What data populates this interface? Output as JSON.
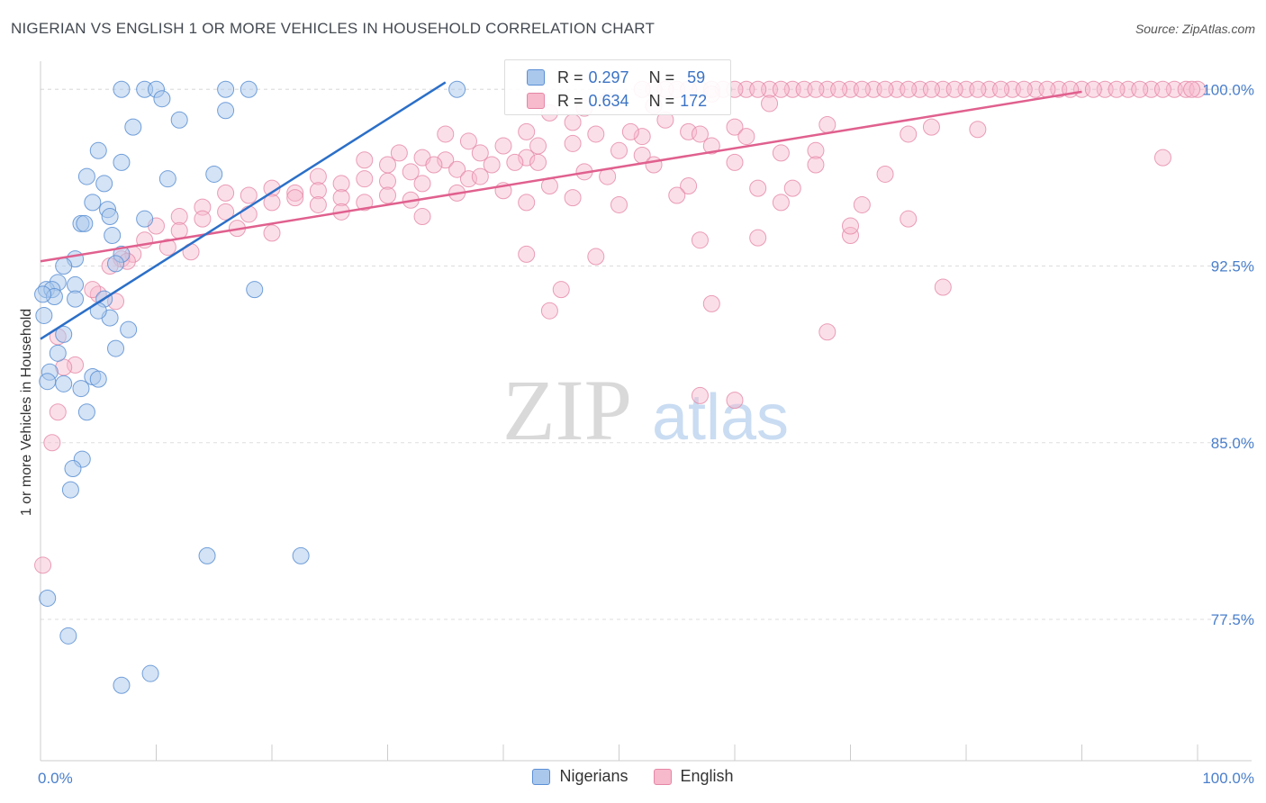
{
  "chart_data": {
    "type": "scatter",
    "title": "NIGERIAN VS ENGLISH 1 OR MORE VEHICLES IN HOUSEHOLD CORRELATION CHART",
    "source": "Source: ZipAtlas.com",
    "xlabel": "",
    "ylabel": "1 or more Vehicles in Household",
    "xlim": [
      0,
      100
    ],
    "ylim": [
      71.5,
      101.5
    ],
    "x_tick_labels": [
      "0.0%",
      "100.0%"
    ],
    "y_ticks": [
      77.5,
      85.0,
      92.5,
      100.0
    ],
    "y_tick_labels": [
      "77.5%",
      "85.0%",
      "92.5%",
      "100.0%"
    ],
    "watermark": {
      "zip": "ZIP",
      "atlas": "atlas"
    },
    "legend": {
      "r_label": "R = ",
      "n_label": "N = ",
      "entries": [
        {
          "name": "Nigerians",
          "r": "0.297",
          "n": "59"
        },
        {
          "name": "English",
          "r": "0.634",
          "n": "172"
        }
      ]
    },
    "colors": {
      "nigerians_fill": "#aac8ec",
      "nigerians_stroke": "#5b8fd4",
      "nigerians_line": "#2b6fc8",
      "english_fill": "#f7b9cc",
      "english_stroke": "#e587a6",
      "english_line": "#e0608e",
      "tick_label": "#4a7fcb",
      "grid": "#dddddd"
    },
    "series": [
      {
        "name": "Nigerians",
        "trendline": {
          "x": [
            0,
            35
          ],
          "y": [
            89.4,
            100.3
          ]
        },
        "points": [
          [
            7,
            100
          ],
          [
            9,
            100
          ],
          [
            10,
            100
          ],
          [
            16,
            100
          ],
          [
            18,
            100
          ],
          [
            36,
            100
          ],
          [
            10.5,
            99.6
          ],
          [
            16,
            99.1
          ],
          [
            12,
            98.7
          ],
          [
            8,
            98.4
          ],
          [
            5,
            97.4
          ],
          [
            7,
            96.9
          ],
          [
            4,
            96.3
          ],
          [
            11,
            96.2
          ],
          [
            15,
            96.4
          ],
          [
            5.5,
            96
          ],
          [
            4.5,
            95.2
          ],
          [
            5.8,
            94.9
          ],
          [
            6,
            94.6
          ],
          [
            9,
            94.5
          ],
          [
            3.5,
            94.3
          ],
          [
            3.8,
            94.3
          ],
          [
            6.2,
            93.8
          ],
          [
            3,
            92.8
          ],
          [
            7,
            93
          ],
          [
            2,
            92.5
          ],
          [
            6.5,
            92.6
          ],
          [
            1.5,
            91.8
          ],
          [
            0.5,
            91.5
          ],
          [
            1,
            91.5
          ],
          [
            3,
            91.7
          ],
          [
            1.2,
            91.2
          ],
          [
            3,
            91.1
          ],
          [
            18.5,
            91.5
          ],
          [
            5.5,
            91.1
          ],
          [
            6,
            90.3
          ],
          [
            5,
            90.6
          ],
          [
            0.3,
            90.4
          ],
          [
            2,
            89.6
          ],
          [
            7.6,
            89.8
          ],
          [
            1.5,
            88.8
          ],
          [
            6.5,
            89
          ],
          [
            0.8,
            88
          ],
          [
            4.5,
            87.8
          ],
          [
            0.6,
            87.6
          ],
          [
            5,
            87.7
          ],
          [
            2,
            87.5
          ],
          [
            3.5,
            87.3
          ],
          [
            4,
            86.3
          ],
          [
            3.6,
            84.3
          ],
          [
            2.8,
            83.9
          ],
          [
            2.6,
            83
          ],
          [
            14.4,
            80.2
          ],
          [
            22.5,
            80.2
          ],
          [
            0.6,
            78.4
          ],
          [
            2.4,
            76.8
          ],
          [
            7,
            74.7
          ],
          [
            9.5,
            75.2
          ],
          [
            0.2,
            91.3
          ]
        ]
      },
      {
        "name": "English",
        "trendline": {
          "x": [
            0,
            90
          ],
          "y": [
            92.7,
            99.9
          ]
        },
        "points": [
          [
            53,
            100
          ],
          [
            55,
            100
          ],
          [
            57,
            100
          ],
          [
            59,
            100
          ],
          [
            61,
            100
          ],
          [
            63,
            100
          ],
          [
            65,
            100
          ],
          [
            68,
            100
          ],
          [
            70,
            100
          ],
          [
            72,
            100
          ],
          [
            74,
            100
          ],
          [
            76,
            100
          ],
          [
            78,
            100
          ],
          [
            80,
            100
          ],
          [
            82,
            100
          ],
          [
            84,
            100
          ],
          [
            86,
            100
          ],
          [
            88,
            100
          ],
          [
            90,
            100
          ],
          [
            92,
            100
          ],
          [
            94,
            100
          ],
          [
            96,
            100
          ],
          [
            98,
            100
          ],
          [
            99,
            100
          ],
          [
            100,
            100
          ],
          [
            52,
            100
          ],
          [
            54,
            100
          ],
          [
            56,
            100
          ],
          [
            58,
            100
          ],
          [
            60,
            100
          ],
          [
            62,
            100
          ],
          [
            64,
            100
          ],
          [
            66,
            100
          ],
          [
            67,
            100
          ],
          [
            69,
            100
          ],
          [
            71,
            100
          ],
          [
            73,
            100
          ],
          [
            75,
            100
          ],
          [
            77,
            100
          ],
          [
            79,
            100
          ],
          [
            81,
            100
          ],
          [
            83,
            100
          ],
          [
            85,
            100
          ],
          [
            87,
            100
          ],
          [
            89,
            100
          ],
          [
            91,
            100
          ],
          [
            93,
            100
          ],
          [
            95,
            100
          ],
          [
            97,
            100
          ],
          [
            99.5,
            100
          ],
          [
            49,
            99.5
          ],
          [
            58,
            99.8
          ],
          [
            63,
            99.4
          ],
          [
            44,
            99
          ],
          [
            46,
            98.6
          ],
          [
            54,
            98.7
          ],
          [
            60,
            98.4
          ],
          [
            68,
            98.5
          ],
          [
            75,
            98.1
          ],
          [
            77,
            98.4
          ],
          [
            42,
            98.2
          ],
          [
            48,
            98.1
          ],
          [
            52,
            98
          ],
          [
            56,
            98.2
          ],
          [
            57,
            98.1
          ],
          [
            61,
            98
          ],
          [
            35,
            98.1
          ],
          [
            37,
            97.8
          ],
          [
            40,
            97.6
          ],
          [
            46,
            97.7
          ],
          [
            31,
            97.3
          ],
          [
            33,
            97.1
          ],
          [
            35,
            97
          ],
          [
            38,
            97.3
          ],
          [
            42,
            97.1
          ],
          [
            50,
            97.4
          ],
          [
            52,
            97.2
          ],
          [
            58,
            97.6
          ],
          [
            64,
            97.3
          ],
          [
            67,
            97.4
          ],
          [
            28,
            97
          ],
          [
            30,
            96.8
          ],
          [
            32,
            96.5
          ],
          [
            34,
            96.8
          ],
          [
            36,
            96.6
          ],
          [
            41,
            96.9
          ],
          [
            43,
            96.9
          ],
          [
            47,
            96.5
          ],
          [
            49,
            96.3
          ],
          [
            53,
            96.8
          ],
          [
            24,
            96.3
          ],
          [
            26,
            96
          ],
          [
            28,
            96.2
          ],
          [
            30,
            96.1
          ],
          [
            33,
            96
          ],
          [
            37,
            96.2
          ],
          [
            40,
            95.7
          ],
          [
            46,
            95.4
          ],
          [
            56,
            95.9
          ],
          [
            62,
            95.8
          ],
          [
            20,
            95.8
          ],
          [
            22,
            95.6
          ],
          [
            24,
            95.7
          ],
          [
            26,
            95.4
          ],
          [
            28,
            95.2
          ],
          [
            30,
            95.5
          ],
          [
            32,
            95.3
          ],
          [
            36,
            95.6
          ],
          [
            42,
            95.2
          ],
          [
            50,
            95.1
          ],
          [
            16,
            95.6
          ],
          [
            18,
            95.5
          ],
          [
            20,
            95.2
          ],
          [
            22,
            95.4
          ],
          [
            24,
            95.1
          ],
          [
            14,
            95
          ],
          [
            16,
            94.8
          ],
          [
            18,
            94.7
          ],
          [
            26,
            94.8
          ],
          [
            33,
            94.6
          ],
          [
            12,
            94.6
          ],
          [
            14,
            94.5
          ],
          [
            10,
            94.2
          ],
          [
            12,
            94
          ],
          [
            17,
            94.1
          ],
          [
            20,
            93.9
          ],
          [
            9,
            93.6
          ],
          [
            11,
            93.3
          ],
          [
            13,
            93.1
          ],
          [
            8,
            93
          ],
          [
            7,
            92.8
          ],
          [
            6,
            92.5
          ],
          [
            57,
            93.6
          ],
          [
            62,
            93.7
          ],
          [
            70,
            93.8
          ],
          [
            42,
            93
          ],
          [
            45,
            91.5
          ],
          [
            44,
            90.6
          ],
          [
            58,
            90.9
          ],
          [
            68,
            89.7
          ],
          [
            78,
            91.6
          ],
          [
            1.5,
            89.5
          ],
          [
            3,
            88.3
          ],
          [
            2,
            88.2
          ],
          [
            57,
            87
          ],
          [
            60,
            86.8
          ],
          [
            1.5,
            86.3
          ],
          [
            1,
            85
          ],
          [
            0.2,
            79.8
          ],
          [
            75,
            94.5
          ],
          [
            67,
            96.8
          ],
          [
            73,
            96.4
          ],
          [
            70,
            94.2
          ],
          [
            64,
            95.2
          ],
          [
            48,
            92.9
          ],
          [
            38,
            96.3
          ],
          [
            44,
            95.9
          ],
          [
            60,
            96.9
          ],
          [
            5,
            91.3
          ],
          [
            6.5,
            91
          ],
          [
            7.5,
            92.7
          ],
          [
            4.5,
            91.5
          ],
          [
            81,
            98.3
          ],
          [
            97,
            97.1
          ],
          [
            55,
            95.5
          ],
          [
            65,
            95.8
          ],
          [
            71,
            95.1
          ],
          [
            47,
            99.2
          ],
          [
            53,
            99.3
          ],
          [
            51,
            98.2
          ],
          [
            43,
            97.6
          ],
          [
            39,
            96.8
          ]
        ]
      }
    ]
  }
}
